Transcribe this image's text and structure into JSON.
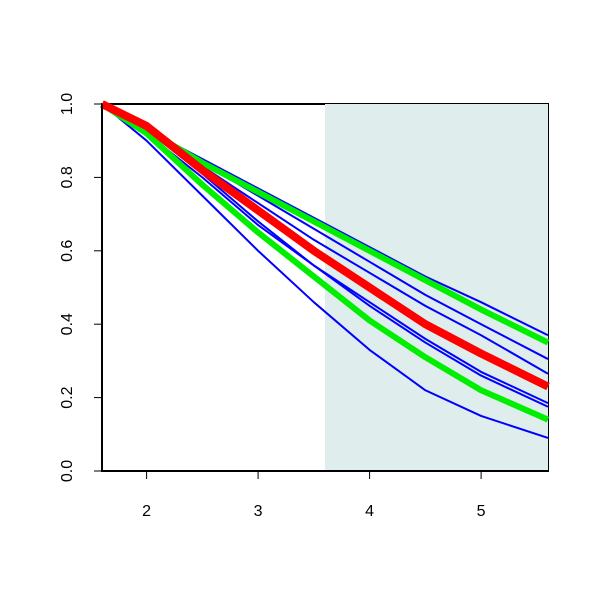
{
  "chart_data": {
    "type": "line",
    "x": [
      1.6,
      2,
      2.5,
      3,
      3.5,
      4,
      4.5,
      5,
      5.6
    ],
    "xlim": [
      1.6,
      5.6
    ],
    "ylim": [
      0,
      1
    ],
    "xticks": [
      2,
      3,
      4,
      5
    ],
    "yticks": [
      {
        "value": 0,
        "label": "0.0"
      },
      0.2,
      0.4,
      0.6,
      0.8,
      {
        "value": 1,
        "label": "1.0"
      }
    ],
    "shaded_xrange": [
      3.6,
      5.6
    ],
    "shade_color": "#e0eded",
    "series": [
      {
        "color": "#0000ff",
        "width": 2,
        "values": [
          1,
          0.93,
          0.85,
          0.77,
          0.69,
          0.61,
          0.53,
          0.46,
          0.37
        ]
      },
      {
        "color": "#0000ff",
        "width": 2,
        "values": [
          1,
          0.93,
          0.84,
          0.75,
          0.66,
          0.57,
          0.48,
          0.4,
          0.305
        ]
      },
      {
        "color": "#0000ff",
        "width": 2,
        "values": [
          1,
          0.93,
          0.83,
          0.73,
          0.63,
          0.54,
          0.45,
          0.37,
          0.265
        ]
      },
      {
        "color": "#0000ff",
        "width": 2,
        "values": [
          1,
          0.93,
          0.81,
          0.68,
          0.56,
          0.45,
          0.35,
          0.26,
          0.175
        ]
      },
      {
        "color": "#0000ff",
        "width": 2,
        "values": [
          1,
          0.92,
          0.8,
          0.67,
          0.56,
          0.46,
          0.36,
          0.27,
          0.185
        ]
      },
      {
        "color": "#0000ff",
        "width": 2,
        "values": [
          1,
          0.9,
          0.75,
          0.6,
          0.46,
          0.33,
          0.22,
          0.15,
          0.09
        ]
      },
      {
        "color": "#00ee00",
        "width": 6,
        "values": [
          1,
          0.93,
          0.84,
          0.76,
          0.68,
          0.6,
          0.52,
          0.44,
          0.35
        ]
      },
      {
        "color": "#00ee00",
        "width": 6,
        "values": [
          1,
          0.92,
          0.78,
          0.65,
          0.53,
          0.41,
          0.31,
          0.22,
          0.14
        ]
      },
      {
        "color": "#ff0000",
        "width": 8,
        "values": [
          1,
          0.94,
          0.82,
          0.71,
          0.6,
          0.5,
          0.4,
          0.32,
          0.23
        ]
      }
    ]
  }
}
